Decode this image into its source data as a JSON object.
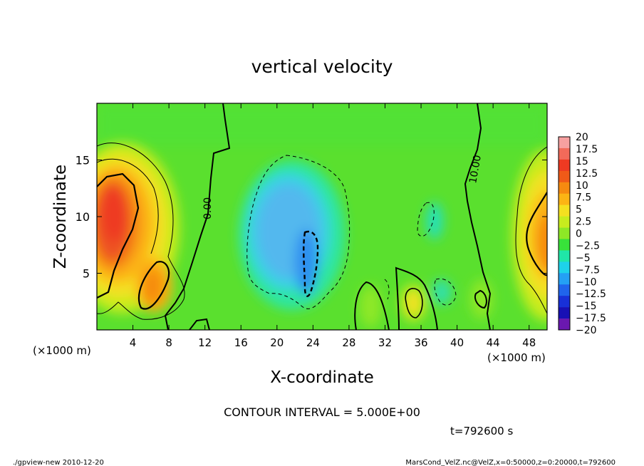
{
  "chart_data": {
    "type": "heatmap",
    "title": "vertical velocity",
    "xlabel": "X-coordinate",
    "ylabel": "Z-coordinate",
    "x_unit_left": "(×1000 m)",
    "x_unit_right": "(×1000 m)",
    "xlim": [
      0,
      50
    ],
    "ylim": [
      0,
      20
    ],
    "xticks": [
      4,
      8,
      12,
      16,
      20,
      24,
      28,
      32,
      36,
      40,
      44,
      48
    ],
    "yticks": [
      5,
      10,
      15
    ],
    "colorbar": {
      "labels": [
        "20",
        "17.5",
        "15",
        "12.5",
        "10",
        "7.5",
        "5",
        "2.5",
        "0",
        "−2.5",
        "−5",
        "−7.5",
        "−10",
        "−12.5",
        "−15",
        "−17.5",
        "−20"
      ],
      "colors": [
        "#f7a0a0",
        "#f26a5a",
        "#ee3a22",
        "#f05a18",
        "#f68a10",
        "#fcb414",
        "#f4e020",
        "#c8ec1e",
        "#8ee826",
        "#38e23a",
        "#20e6a8",
        "#1ed2ea",
        "#24a0f4",
        "#2064ec",
        "#1830d8",
        "#1810b4",
        "#6a18b0"
      ]
    },
    "contour_labels": [
      "0.00",
      "10.00"
    ],
    "contour_interval_text": "CONTOUR INTERVAL = 5.000E+00",
    "time_text": "t=792600 s"
  },
  "footer": {
    "left": "./gpview-new  2010-12-20",
    "right": "MarsCond_VelZ.nc@VelZ,x=0:50000,z=0:20000,t=792600"
  },
  "colors": {
    "background_green": "#5ae02e"
  }
}
